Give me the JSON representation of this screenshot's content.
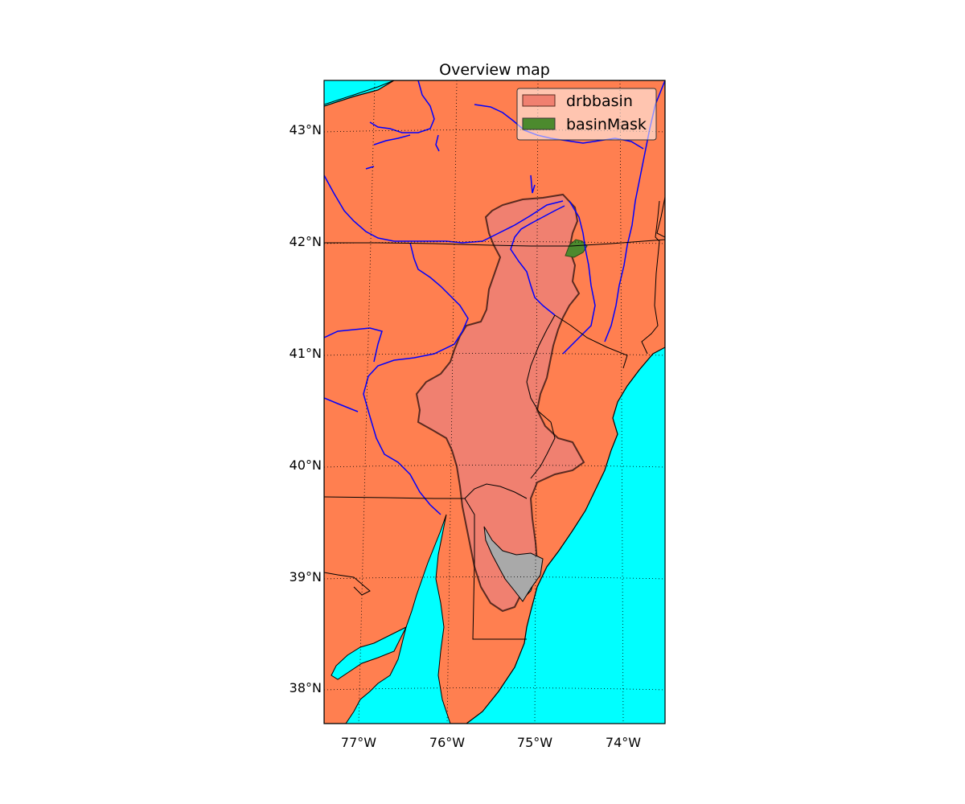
{
  "title": "Overview map",
  "colors": {
    "water": "#00ffff",
    "land": "#ff7f50",
    "basin": "#f08070",
    "basin_outline": "#5a2a20",
    "mask": "#4c8a2e",
    "bay_area": "#a9a9a9",
    "rivers": "#0000ff",
    "borders": "#000000"
  },
  "legend": {
    "placement": "top-right",
    "items": [
      {
        "label": "drbbasin",
        "color": "#f08070"
      },
      {
        "label": "basinMask",
        "color": "#4c8a2e"
      }
    ]
  },
  "axes": {
    "lat_labels": [
      "43°N",
      "42°N",
      "41°N",
      "40°N",
      "39°N",
      "38°N"
    ],
    "lon_labels": [
      "77°W",
      "76°W",
      "75°W",
      "74°W"
    ],
    "lat_range": [
      37.7,
      43.45
    ],
    "lon_range": [
      -77.4,
      -73.5
    ],
    "grid": "dotted"
  }
}
